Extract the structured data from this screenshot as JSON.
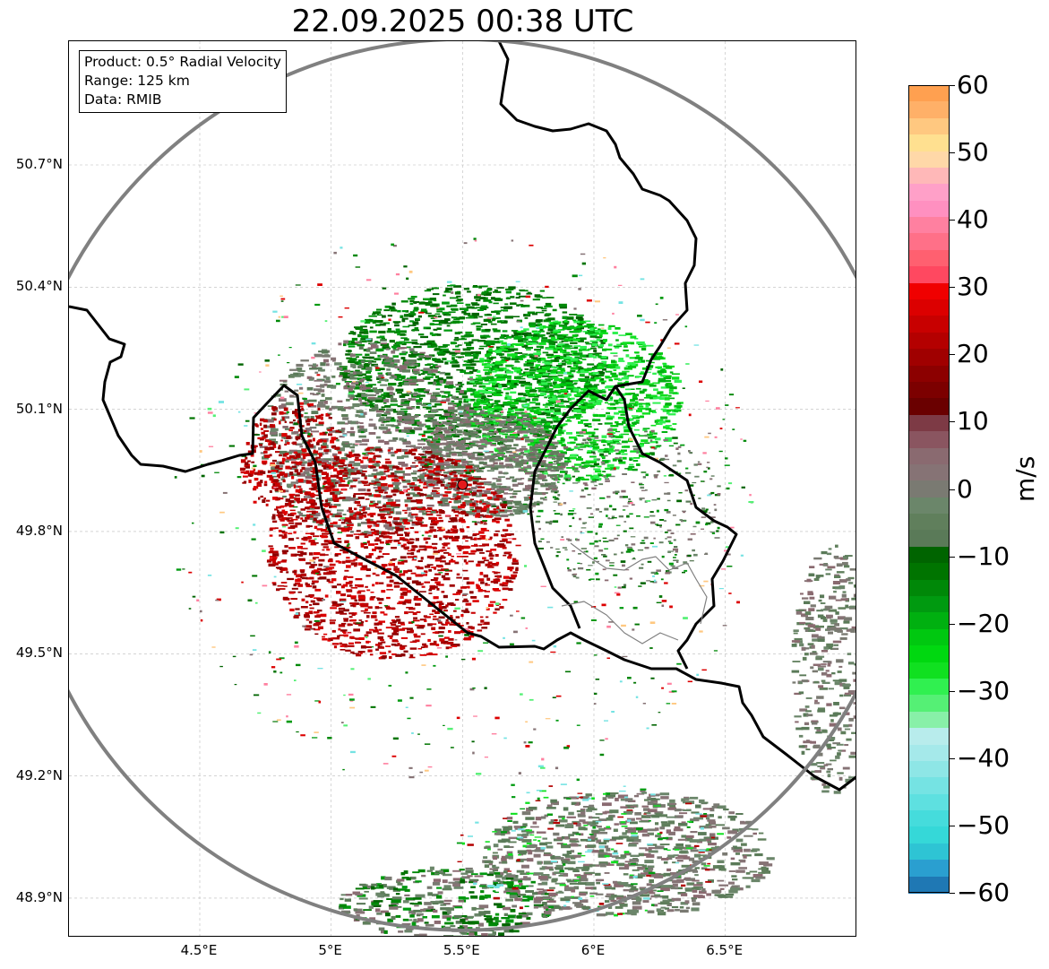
{
  "title": "22.09.2025 00:38 UTC",
  "info_box": {
    "product": "Product: 0.5° Radial Velocity",
    "range": "Range: 125 km",
    "data": "Data: RMIB"
  },
  "axes": {
    "lat_labels": [
      "50.7°N",
      "50.4°N",
      "50.1°N",
      "49.8°N",
      "49.5°N",
      "49.2°N",
      "48.9°N"
    ],
    "lon_labels": [
      "4.5°E",
      "5°E",
      "5.5°E",
      "6°E",
      "6.5°E"
    ]
  },
  "map_data": {
    "radar_site": {
      "lon": 5.5,
      "lat": 49.915,
      "marker_color": "#e41a1c"
    },
    "range_ring_km": 125,
    "extent": {
      "lon_min": 4.0,
      "lon_max": 7.0,
      "lat_min": 48.8,
      "lat_max": 50.99
    },
    "colors": {
      "border": "#000000",
      "ring": "#808080",
      "province": "#808080"
    }
  },
  "colorbar": {
    "unit": "m/s",
    "vmin": -60,
    "vmax": 60,
    "tick_labels": [
      "60",
      "50",
      "40",
      "30",
      "20",
      "10",
      "0",
      "−10",
      "−20",
      "−30",
      "−40",
      "−50",
      "−60"
    ],
    "stops": [
      "#1f78b4",
      "#2a9fd0",
      "#2ec4d4",
      "#35d8d8",
      "#45dcdc",
      "#5ee0e0",
      "#75e3e3",
      "#8ee6e6",
      "#a5e9ea",
      "#b8ecec",
      "#88f0a8",
      "#55f075",
      "#30f050",
      "#10e020",
      "#00d810",
      "#00c810",
      "#00b010",
      "#009a10",
      "#008808",
      "#007400",
      "#006400",
      "#5a7a58",
      "#607f5c",
      "#6b866a",
      "#7a7a72",
      "#867375",
      "#8a6a70",
      "#8a5560",
      "#7d3a45",
      "#6a0000",
      "#7c0000",
      "#8c0000",
      "#a00000",
      "#b40000",
      "#c80000",
      "#dc0000",
      "#f00000",
      "#ff4860",
      "#ff6070",
      "#ff7088",
      "#ff80a0",
      "#ff90c0",
      "#ffa0c8",
      "#ffb8b8",
      "#ffd8a8",
      "#ffe090",
      "#ffc880",
      "#ffb068",
      "#ffa050"
    ]
  }
}
